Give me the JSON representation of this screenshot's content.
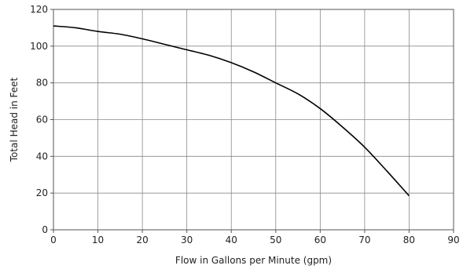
{
  "chart_data": {
    "type": "line",
    "xlabel": "Flow in Gallons per Minute (gpm)",
    "ylabel": "Total Head in Feet",
    "xlim": [
      0,
      90
    ],
    "ylim": [
      0,
      120
    ],
    "xticks": [
      0,
      10,
      20,
      30,
      40,
      50,
      60,
      70,
      80,
      90
    ],
    "yticks": [
      0,
      20,
      40,
      60,
      80,
      100,
      120
    ],
    "grid": true,
    "series": [
      {
        "color": "#000000",
        "x": [
          0,
          5,
          10,
          15,
          20,
          25,
          30,
          35,
          40,
          45,
          50,
          55,
          60,
          65,
          70,
          75,
          80
        ],
        "y": [
          111,
          110,
          108,
          106.5,
          104,
          101,
          98,
          95,
          91,
          86,
          80,
          74,
          66,
          56,
          45,
          32,
          18.5
        ]
      }
    ]
  }
}
